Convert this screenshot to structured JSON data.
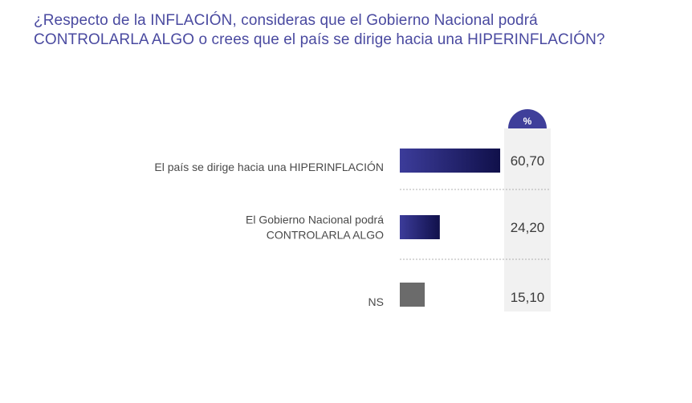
{
  "title": {
    "line1": "¿Respecto de la INFLACIÓN, consideras que el Gobierno Nacional  podrá",
    "line2": "CONTROLARLA ALGO o crees que el país se dirige hacia una HIPERINFLACIÓN?"
  },
  "chart_data": {
    "type": "bar",
    "orientation": "horizontal",
    "value_header": "%",
    "categories": [
      [
        "El país se dirige hacia una HIPERINFLACIÓN"
      ],
      [
        "El Gobierno Nacional podrá",
        "CONTROLARLA ALGO"
      ],
      [
        "NS"
      ]
    ],
    "values": [
      60.7,
      24.2,
      15.1
    ],
    "value_labels": [
      "60,70",
      "24,20",
      "15,10"
    ],
    "colors": {
      "bar_gradient_start": "#3c3c9a",
      "bar_gradient_end": "#10104a",
      "ns_bar": "#6b6b6b",
      "badge": "#3f3f9a",
      "value_column": "#f1f1f1",
      "separator": "#b0b0b0"
    },
    "xlim": [
      0,
      100
    ]
  }
}
